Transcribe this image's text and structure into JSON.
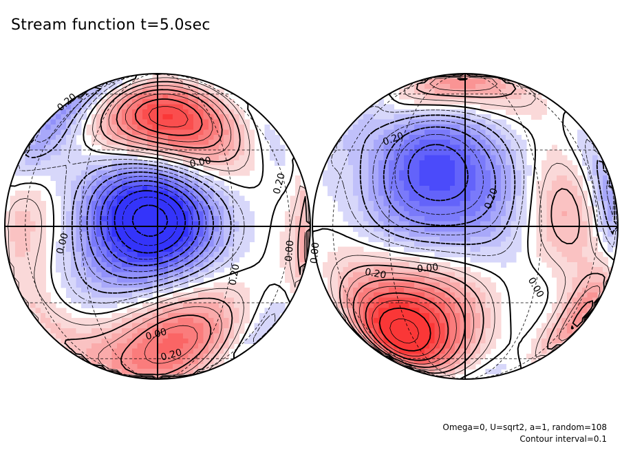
{
  "title": "Stream function t=5.0sec",
  "notes": {
    "params": "Omega=0, U=sqrt2, a=1, random=108",
    "contour": "Contour interval=0.1"
  },
  "colors": {
    "positive": "#e05050",
    "negative": "#5050f0",
    "zero_line": "#000000"
  },
  "chart_data": {
    "type": "heatmap",
    "projection": "orthographic hemispheres",
    "contour_interval": 0.1,
    "contour_labels": [
      "0.20",
      "0.00",
      "0.20",
      "0.00",
      "0.20",
      "0.00",
      "0.20",
      "0.00",
      "0.00",
      "0.20",
      "0.20",
      "0.20",
      "0.00",
      "0.00"
    ],
    "hemispheres": [
      {
        "features": [
          {
            "lon": 0,
            "lat": 2,
            "value": -0.9
          },
          {
            "lon": -5,
            "lat": 45,
            "value": 0.6
          },
          {
            "lon": 20,
            "lat": 38,
            "value": 0.4
          },
          {
            "lon": 12,
            "lat": -44,
            "value": 0.55
          },
          {
            "lon": -30,
            "lat": -48,
            "value": 0.2
          },
          {
            "lon": -60,
            "lat": 8,
            "value": 0.3
          },
          {
            "lon": -80,
            "lat": 55,
            "value": -0.35
          },
          {
            "lon": -60,
            "lat": 28,
            "value": -0.3
          },
          {
            "lon": 85,
            "lat": -5,
            "value": 0.4
          },
          {
            "lon": -25,
            "lat": -30,
            "value": -0.25
          },
          {
            "lon": -80,
            "lat": -38,
            "value": 0.15
          },
          {
            "lon": -20,
            "lat": -80,
            "value": 0.3
          },
          {
            "lon": 70,
            "lat": -40,
            "value": -0.2
          },
          {
            "lon": 60,
            "lat": 30,
            "value": -0.15
          },
          {
            "lon": -10,
            "lat": 12,
            "value": -0.3
          }
        ]
      },
      {
        "features": [
          {
            "lon": -15,
            "lat": 32,
            "value": -0.5
          },
          {
            "lon": 10,
            "lat": 10,
            "value": -0.35
          },
          {
            "lon": 75,
            "lat": 8,
            "value": -0.4
          },
          {
            "lon": -35,
            "lat": -38,
            "value": 0.5
          },
          {
            "lon": -40,
            "lat": -55,
            "value": 0.5
          },
          {
            "lon": -10,
            "lat": -30,
            "value": 0.3
          },
          {
            "lon": 40,
            "lat": 5,
            "value": 0.4
          },
          {
            "lon": 70,
            "lat": -35,
            "value": 0.5
          },
          {
            "lon": 0,
            "lat": 72,
            "value": 0.35
          },
          {
            "lon": -30,
            "lat": 62,
            "value": 0.15
          },
          {
            "lon": 35,
            "lat": -30,
            "value": -0.2
          },
          {
            "lon": 10,
            "lat": -72,
            "value": -0.2
          },
          {
            "lon": -70,
            "lat": 45,
            "value": -0.2
          },
          {
            "lon": -20,
            "lat": 5,
            "value": -0.3
          }
        ]
      }
    ]
  }
}
